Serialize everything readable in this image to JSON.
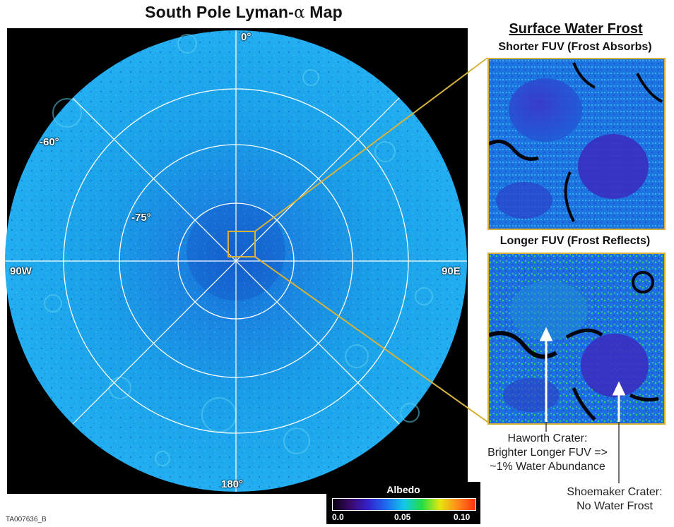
{
  "map": {
    "title_prefix": "South Pole Lyman-",
    "title_greek": "α",
    "title_suffix": " Map",
    "lon_labels": {
      "top": "0°",
      "left": "90W",
      "right": "90E",
      "bottom": "180°"
    },
    "lat_labels": {
      "outer": "-60°",
      "inner": "-75°"
    }
  },
  "frost_panel": {
    "title": "Surface Water Frost",
    "shorter_label": "Shorter FUV (Frost Absorbs)",
    "longer_label": "Longer FUV (Frost Reflects)"
  },
  "captions": {
    "haworth": [
      "Haworth Crater:",
      "Brighter Longer FUV =>",
      "~1% Water Abundance"
    ],
    "shoemaker": [
      "Shoemaker Crater:",
      "No Water Frost"
    ]
  },
  "colorbar": {
    "title": "Albedo",
    "ticks": [
      "0.0",
      "0.05",
      "0.10"
    ]
  },
  "colors": {
    "map_blue": "#1aa0e8",
    "frame_gold": "#d6b23a",
    "grid": "#ffffff"
  },
  "id_tag": "TA007636_B"
}
